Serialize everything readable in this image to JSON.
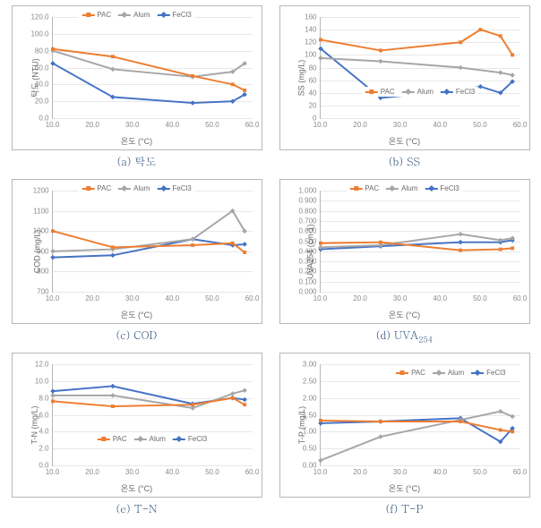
{
  "colors": {
    "pac": "#ed7d31",
    "alum": "#a6a6a6",
    "fecl3": "#4472c4",
    "grid": "#e8e8e8",
    "axis": "#b7b7b7",
    "text": "#6a6a6a",
    "caption": "#264b78",
    "bg": "#ffffff"
  },
  "legend_labels": {
    "pac": "PAC",
    "alum": "Alum",
    "fecl3": "FeCl3"
  },
  "x": {
    "label": "온도 (°C)",
    "min": 10,
    "max": 60,
    "ticks": [
      10,
      20,
      30,
      40,
      50,
      60
    ],
    "tick_labels": [
      "10.0",
      "20.0",
      "30.0",
      "40.0",
      "50.0",
      "60.0"
    ]
  },
  "charts": [
    {
      "key": "a",
      "caption": "(a) 탁도",
      "ylabel": "탁도 (NTU)",
      "ymin": 0,
      "ymax": 120,
      "yticks": [
        0,
        20,
        40,
        60,
        80,
        100,
        120
      ],
      "ytick_labels": [
        "0.0",
        "20.0",
        "40.0",
        "60.0",
        "80.0",
        "100.0",
        "120.0"
      ],
      "legend_pos": "top",
      "series": {
        "pac": [
          [
            10,
            82
          ],
          [
            25,
            73
          ],
          [
            45,
            50
          ],
          [
            55,
            40
          ],
          [
            58,
            33
          ]
        ],
        "alum": [
          [
            10,
            80
          ],
          [
            25,
            58
          ],
          [
            45,
            49
          ],
          [
            55,
            55
          ],
          [
            58,
            65
          ]
        ],
        "fecl3": [
          [
            10,
            65
          ],
          [
            25,
            25
          ],
          [
            45,
            18
          ],
          [
            55,
            20
          ],
          [
            58,
            28
          ]
        ]
      }
    },
    {
      "key": "b",
      "caption": "(b) SS",
      "ylabel": "SS (mg/L)",
      "ymin": 0,
      "ymax": 160,
      "yticks": [
        0,
        20,
        40,
        60,
        80,
        100,
        120,
        140,
        160
      ],
      "ytick_labels": [
        "0",
        "20",
        "40",
        "60",
        "80",
        "100",
        "120",
        "140",
        "160"
      ],
      "legend_pos": "bottom",
      "series": {
        "pac": [
          [
            10,
            124
          ],
          [
            25,
            107
          ],
          [
            45,
            120
          ],
          [
            50,
            140
          ],
          [
            55,
            130
          ],
          [
            58,
            100
          ]
        ],
        "alum": [
          [
            10,
            95
          ],
          [
            25,
            90
          ],
          [
            45,
            80
          ],
          [
            55,
            72
          ],
          [
            58,
            68
          ]
        ],
        "fecl3": [
          [
            10,
            110
          ],
          [
            25,
            32
          ],
          [
            45,
            44
          ],
          [
            50,
            50
          ],
          [
            55,
            40
          ],
          [
            58,
            58
          ]
        ]
      }
    },
    {
      "key": "c",
      "caption": "(c) COD",
      "ylabel": "COD (mg/L)",
      "ymin": 700,
      "ymax": 1200,
      "yticks": [
        700,
        800,
        900,
        1000,
        1100,
        1200
      ],
      "ytick_labels": [
        "700",
        "800",
        "900",
        "1000",
        "1100",
        "1200"
      ],
      "legend_pos": "top",
      "series": {
        "pac": [
          [
            10,
            1000
          ],
          [
            25,
            920
          ],
          [
            45,
            930
          ],
          [
            55,
            940
          ],
          [
            58,
            895
          ]
        ],
        "alum": [
          [
            10,
            900
          ],
          [
            25,
            910
          ],
          [
            45,
            960
          ],
          [
            55,
            1100
          ],
          [
            58,
            1000
          ]
        ],
        "fecl3": [
          [
            10,
            870
          ],
          [
            25,
            880
          ],
          [
            45,
            960
          ],
          [
            55,
            930
          ],
          [
            58,
            935
          ]
        ]
      }
    },
    {
      "key": "d",
      "caption": "(d) UVA254",
      "caption_sub": "254",
      "caption_base": "(d) UVA",
      "ylabel": "UVA254 (cm-1)",
      "ymin": 0,
      "ymax": 1.0,
      "yticks": [
        0,
        0.1,
        0.2,
        0.3,
        0.4,
        0.5,
        0.6,
        0.7,
        0.8,
        0.9,
        1.0
      ],
      "ytick_labels": [
        "0.000",
        "0.100",
        "0.200",
        "0.300",
        "0.400",
        "0.500",
        "0.600",
        "0.700",
        "0.800",
        "0.900",
        "1.000"
      ],
      "legend_pos": "top",
      "series": {
        "pac": [
          [
            10,
            0.48
          ],
          [
            25,
            0.49
          ],
          [
            45,
            0.41
          ],
          [
            55,
            0.42
          ],
          [
            58,
            0.43
          ]
        ],
        "alum": [
          [
            10,
            0.44
          ],
          [
            25,
            0.46
          ],
          [
            45,
            0.57
          ],
          [
            55,
            0.51
          ],
          [
            58,
            0.53
          ]
        ],
        "fecl3": [
          [
            10,
            0.42
          ],
          [
            25,
            0.45
          ],
          [
            45,
            0.49
          ],
          [
            55,
            0.49
          ],
          [
            58,
            0.51
          ]
        ]
      }
    },
    {
      "key": "e",
      "caption": "(e) T-N",
      "ylabel": "T-N (mg/L)",
      "ymin": 0,
      "ymax": 12,
      "yticks": [
        0,
        2,
        4,
        6,
        8,
        10,
        12
      ],
      "ytick_labels": [
        "0.0",
        "2.0",
        "4.0",
        "6.0",
        "8.0",
        "10.0",
        "12.0"
      ],
      "legend_pos": "bottom",
      "series": {
        "pac": [
          [
            10,
            7.6
          ],
          [
            25,
            7.0
          ],
          [
            45,
            7.2
          ],
          [
            55,
            8.0
          ],
          [
            58,
            7.2
          ]
        ],
        "alum": [
          [
            10,
            8.3
          ],
          [
            25,
            8.3
          ],
          [
            45,
            6.8
          ],
          [
            55,
            8.5
          ],
          [
            58,
            8.9
          ]
        ],
        "fecl3": [
          [
            10,
            8.8
          ],
          [
            25,
            9.4
          ],
          [
            45,
            7.3
          ],
          [
            55,
            8.0
          ],
          [
            58,
            7.8
          ]
        ]
      }
    },
    {
      "key": "f",
      "caption": "(f) T-P",
      "ylabel": "T-P (mg/L)",
      "ymin": 0,
      "ymax": 3.0,
      "yticks": [
        0,
        0.5,
        1.0,
        1.5,
        2.0,
        2.5,
        3.0
      ],
      "ytick_labels": [
        "0.00",
        "0.50",
        "1.00",
        "1.50",
        "2.00",
        "2.50",
        "3.00"
      ],
      "legend_pos": "right-inner",
      "series": {
        "pac": [
          [
            10,
            1.33
          ],
          [
            25,
            1.3
          ],
          [
            45,
            1.3
          ],
          [
            55,
            1.05
          ],
          [
            58,
            1.0
          ]
        ],
        "alum": [
          [
            10,
            0.15
          ],
          [
            25,
            0.85
          ],
          [
            45,
            1.35
          ],
          [
            55,
            1.6
          ],
          [
            58,
            1.45
          ]
        ],
        "fecl3": [
          [
            10,
            1.25
          ],
          [
            25,
            1.3
          ],
          [
            45,
            1.4
          ],
          [
            55,
            0.7
          ],
          [
            58,
            1.1
          ]
        ]
      }
    }
  ],
  "marker_size": 4,
  "line_width": 2,
  "tick_fontsize": 8,
  "title_fontsize": 9,
  "caption_fontsize": 12
}
